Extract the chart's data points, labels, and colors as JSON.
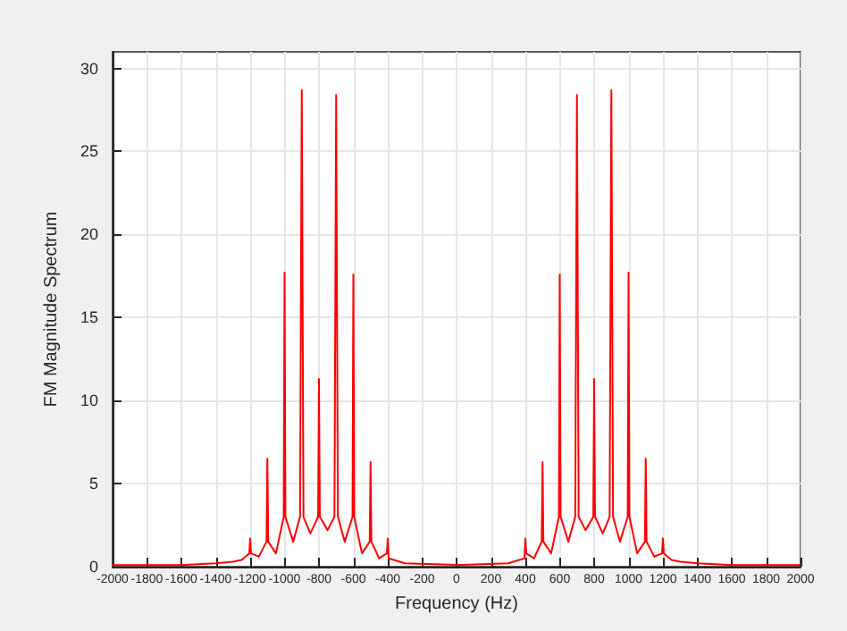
{
  "chart_data": {
    "type": "line",
    "xlabel": "Frequency (Hz)",
    "ylabel": "FM Magnitude Spectrum",
    "x": [
      -2000,
      -1600,
      -1400,
      -1300,
      -1250,
      -1205,
      -1200,
      -1195,
      -1150,
      -1105,
      -1100,
      -1095,
      -1050,
      -1005,
      -1000,
      -995,
      -950,
      -910,
      -900,
      -890,
      -850,
      -805,
      -800,
      -795,
      -750,
      -710,
      -700,
      -690,
      -650,
      -605,
      -600,
      -595,
      -550,
      -505,
      -500,
      -495,
      -450,
      -405,
      -400,
      -395,
      -300,
      0,
      300,
      395,
      400,
      405,
      450,
      495,
      500,
      505,
      550,
      595,
      600,
      605,
      650,
      690,
      700,
      710,
      750,
      795,
      800,
      805,
      850,
      890,
      900,
      910,
      950,
      995,
      1000,
      1005,
      1050,
      1095,
      1100,
      1105,
      1150,
      1195,
      1200,
      1205,
      1250,
      1300,
      1400,
      1600,
      2000
    ],
    "series": [
      {
        "color": "#ff0000",
        "values": [
          0.1,
          0.1,
          0.2,
          0.3,
          0.4,
          0.8,
          1.7,
          0.8,
          0.6,
          1.5,
          6.5,
          1.5,
          0.8,
          3,
          17.7,
          3,
          1.5,
          3,
          28.7,
          3,
          2,
          3,
          11.3,
          3,
          2.2,
          3,
          28.4,
          3,
          1.5,
          3,
          17.6,
          3,
          0.8,
          1.5,
          6.3,
          1.5,
          0.5,
          0.8,
          1.7,
          0.5,
          0.2,
          0.1,
          0.2,
          0.5,
          1.7,
          0.8,
          0.5,
          1.5,
          6.3,
          1.5,
          0.8,
          3,
          17.6,
          3,
          1.5,
          3,
          28.4,
          3,
          2.2,
          3,
          11.3,
          3,
          2,
          3,
          28.7,
          3,
          1.5,
          3,
          17.7,
          3,
          0.8,
          1.5,
          6.5,
          1.5,
          0.6,
          0.8,
          1.7,
          0.8,
          0.4,
          0.3,
          0.2,
          0.1,
          0.1
        ]
      }
    ],
    "xlim": [
      -2000,
      2000
    ],
    "xticks": [
      -2000,
      -1800,
      -1600,
      -1400,
      -1200,
      -1000,
      -800,
      -600,
      -400,
      -200,
      0,
      200,
      400,
      600,
      800,
      1000,
      1200,
      1400,
      1600,
      1800,
      2000
    ],
    "ylim": [
      0,
      31
    ],
    "yticks": [
      0,
      5,
      10,
      15,
      20,
      25,
      30
    ],
    "grid": true,
    "marker": "none",
    "line_style": "solid"
  }
}
